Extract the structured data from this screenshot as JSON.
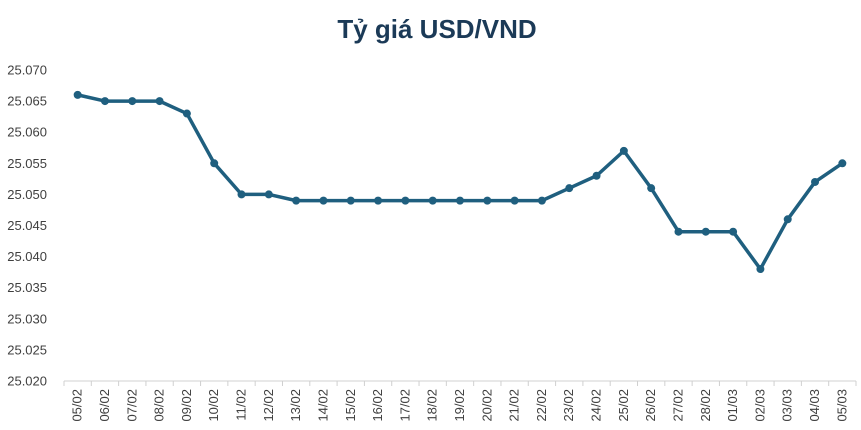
{
  "chart_data": {
    "type": "line",
    "title": "Tỷ giá USD/VND",
    "xlabel": "",
    "ylabel": "",
    "ylim": [
      25.02,
      25.07
    ],
    "ytick_step": 0.005,
    "ytick_labels": [
      "25.020",
      "25.025",
      "25.030",
      "25.035",
      "25.040",
      "25.045",
      "25.050",
      "25.055",
      "25.060",
      "25.065",
      "25.070"
    ],
    "grid": false,
    "legend": "none",
    "line_color": "#1f5f7f",
    "categories": [
      "05/02",
      "06/02",
      "07/02",
      "08/02",
      "09/02",
      "10/02",
      "11/02",
      "12/02",
      "13/02",
      "14/02",
      "15/02",
      "16/02",
      "17/02",
      "18/02",
      "19/02",
      "20/02",
      "21/02",
      "22/02",
      "23/02",
      "24/02",
      "25/02",
      "26/02",
      "27/02",
      "28/02",
      "01/03",
      "02/03",
      "03/03",
      "04/03",
      "05/03"
    ],
    "values": [
      25.066,
      25.065,
      25.065,
      25.065,
      25.063,
      25.055,
      25.05,
      25.05,
      25.049,
      25.049,
      25.049,
      25.049,
      25.049,
      25.049,
      25.049,
      25.049,
      25.049,
      25.049,
      25.051,
      25.053,
      25.057,
      25.051,
      25.044,
      25.044,
      25.044,
      25.038,
      25.046,
      25.052,
      25.055
    ]
  }
}
